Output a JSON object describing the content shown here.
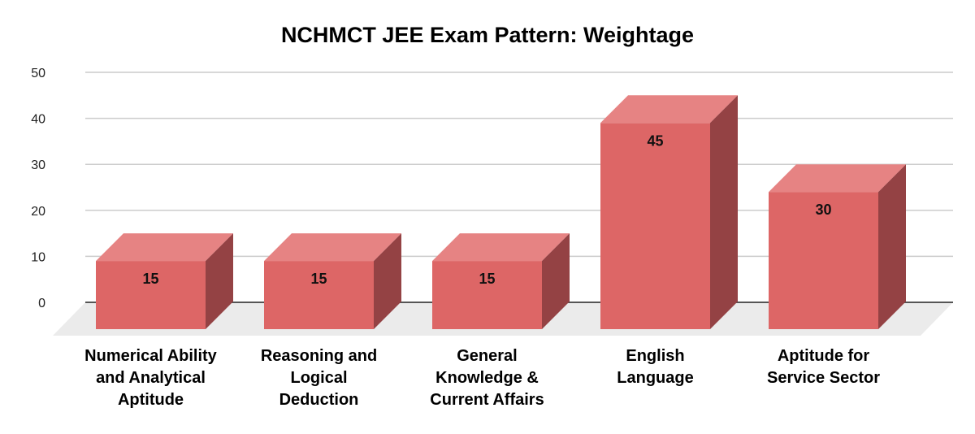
{
  "chart_data": {
    "type": "bar",
    "title": "NCHMCT JEE Exam Pattern: Weightage",
    "xlabel": "",
    "ylabel": "",
    "ylim": [
      0,
      50
    ],
    "yticks": [
      "0",
      "10",
      "20",
      "30",
      "40",
      "50"
    ],
    "grid": true,
    "legend": null,
    "style": "3d",
    "categories": [
      "Numerical Ability and Analytical Aptitude",
      "Reasoning and Logical Deduction",
      "General Knowledge & Current Affairs",
      "English Language",
      "Aptitude for Service Sector"
    ],
    "values": [
      15,
      15,
      15,
      45,
      30
    ],
    "data_labels": [
      "15",
      "15",
      "15",
      "45",
      "30"
    ]
  },
  "labels": {
    "x": [
      [
        "Numerical Ability",
        "and Analytical",
        "Aptitude"
      ],
      [
        "Reasoning and",
        "Logical",
        "Deduction"
      ],
      [
        "General",
        "Knowledge &",
        "Current Affairs"
      ],
      [
        "English",
        "Language"
      ],
      [
        "Aptitude for",
        "Service Sector"
      ]
    ]
  },
  "colors": {
    "bar_front": "#DD6666",
    "bar_top": "#E68383",
    "bar_side": "#944244",
    "floor": "#EBEBEB",
    "gridline": "#CCCCCC",
    "baseline": "#555555"
  }
}
